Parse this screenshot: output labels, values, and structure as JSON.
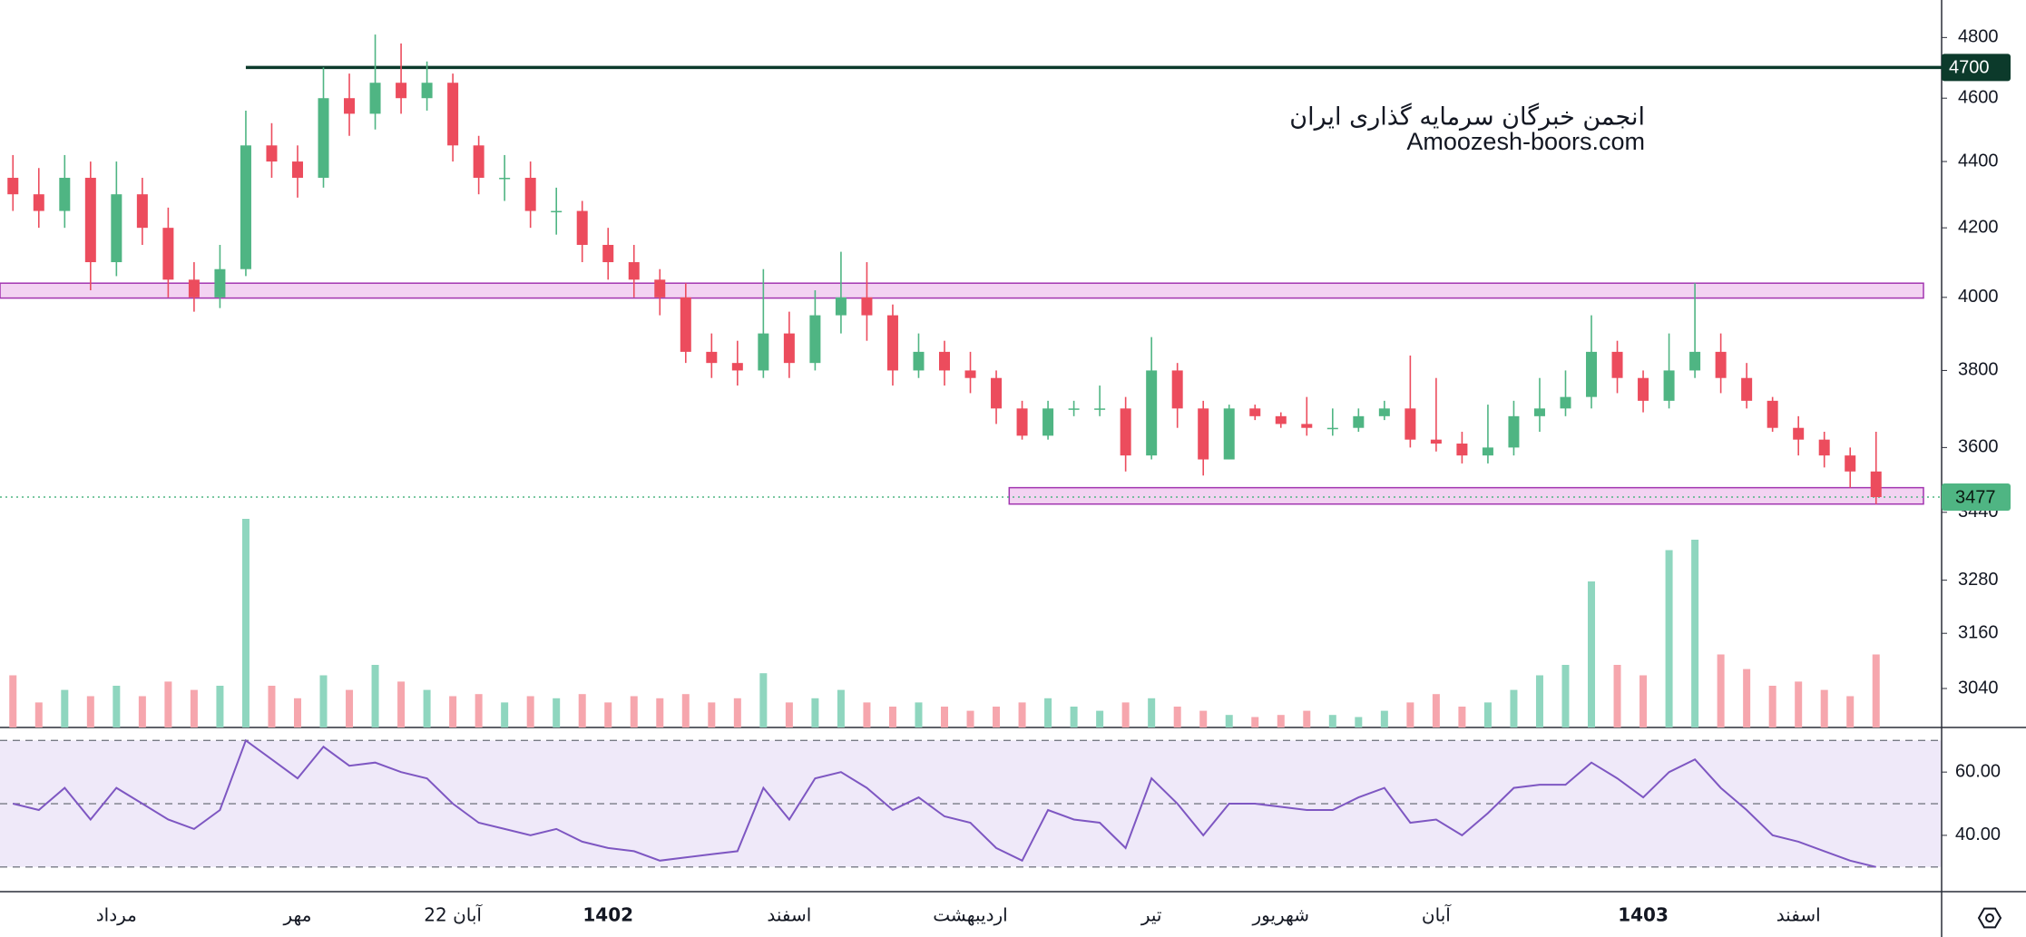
{
  "chart_data": {
    "type": "candlestick",
    "yscale": "log",
    "ylim": [
      2958,
      4928
    ],
    "yticks": [
      4800,
      4600,
      4400,
      4200,
      4000,
      3800,
      3600,
      3440,
      3280,
      3160,
      3040
    ],
    "categories": [
      null,
      null,
      null,
      null,
      "مرداد",
      null,
      null,
      null,
      null,
      null,
      null,
      "مهر",
      null,
      null,
      null,
      null,
      null,
      "22 آبان",
      null,
      null,
      null,
      null,
      null,
      "1402",
      null,
      null,
      null,
      null,
      null,
      null,
      "اسفند",
      null,
      null,
      null,
      null,
      null,
      null,
      "اردیبهشت",
      null,
      null,
      null,
      null,
      null,
      null,
      "تیر",
      null,
      null,
      null,
      null,
      "شهریور",
      null,
      null,
      null,
      null,
      null,
      "آبان",
      null,
      null,
      null,
      null,
      null,
      null,
      null,
      "1403",
      null,
      null,
      null,
      null,
      null,
      "اسفند",
      null,
      null,
      null
    ],
    "open": [
      4350,
      4300,
      4250,
      4350,
      4100,
      4300,
      4200,
      4050,
      4000,
      4080,
      4450,
      4400,
      4350,
      4600,
      4550,
      4650,
      4600,
      4650,
      4450,
      4350,
      4350,
      4250,
      4250,
      4150,
      4100,
      4050,
      4000,
      3850,
      3820,
      3800,
      3900,
      3820,
      3950,
      4000,
      3950,
      3800,
      3850,
      3800,
      3780,
      3700,
      3630,
      3700,
      3700,
      3700,
      3580,
      3800,
      3700,
      3570,
      3700,
      3680,
      3660,
      3650,
      3650,
      3680,
      3700,
      3620,
      3610,
      3580,
      3600,
      3680,
      3700,
      3730,
      3850,
      3780,
      3720,
      3800,
      3850,
      3780,
      3720,
      3650,
      3620,
      3580,
      3540
    ],
    "high": [
      4420,
      4380,
      4420,
      4400,
      4400,
      4350,
      4260,
      4100,
      4150,
      4560,
      4520,
      4450,
      4700,
      4680,
      4810,
      4780,
      4720,
      4680,
      4480,
      4420,
      4400,
      4320,
      4280,
      4200,
      4150,
      4080,
      4040,
      3900,
      3880,
      4080,
      3960,
      4020,
      4130,
      4100,
      3980,
      3900,
      3880,
      3850,
      3800,
      3720,
      3720,
      3720,
      3760,
      3730,
      3890,
      3820,
      3720,
      3710,
      3710,
      3690,
      3730,
      3700,
      3700,
      3720,
      3840,
      3780,
      3640,
      3710,
      3720,
      3780,
      3800,
      3950,
      3880,
      3800,
      3900,
      4040,
      3900,
      3820,
      3730,
      3680,
      3640,
      3600,
      3640
    ],
    "low": [
      4250,
      4200,
      4200,
      4020,
      4060,
      4150,
      4000,
      3960,
      3970,
      4060,
      4350,
      4290,
      4320,
      4480,
      4500,
      4550,
      4560,
      4400,
      4300,
      4280,
      4200,
      4180,
      4100,
      4050,
      4000,
      3950,
      3820,
      3780,
      3760,
      3780,
      3780,
      3800,
      3900,
      3880,
      3760,
      3780,
      3760,
      3740,
      3660,
      3620,
      3620,
      3680,
      3680,
      3540,
      3570,
      3650,
      3530,
      3570,
      3670,
      3650,
      3630,
      3630,
      3640,
      3670,
      3600,
      3590,
      3560,
      3560,
      3580,
      3640,
      3680,
      3700,
      3740,
      3690,
      3700,
      3780,
      3740,
      3700,
      3640,
      3580,
      3550,
      3500,
      3460
    ],
    "close": [
      4300,
      4250,
      4350,
      4100,
      4300,
      4200,
      4050,
      4000,
      4080,
      4450,
      4400,
      4350,
      4600,
      4550,
      4650,
      4600,
      4650,
      4450,
      4350,
      4350,
      4250,
      4250,
      4150,
      4100,
      4050,
      4000,
      3850,
      3820,
      3800,
      3900,
      3820,
      3950,
      4000,
      3950,
      3800,
      3850,
      3800,
      3780,
      3700,
      3630,
      3700,
      3700,
      3700,
      3580,
      3800,
      3700,
      3570,
      3700,
      3680,
      3660,
      3650,
      3650,
      3680,
      3700,
      3620,
      3610,
      3580,
      3600,
      3680,
      3700,
      3730,
      3850,
      3780,
      3720,
      3800,
      3850,
      3780,
      3720,
      3650,
      3620,
      3580,
      3540,
      3477
    ],
    "up_color": "#4fb583",
    "down_color": "#ec4c5d",
    "levels": [
      {
        "value": 4700,
        "color": "#0c3a2b"
      }
    ],
    "zones": [
      [
        3998,
        4040
      ],
      [
        3460,
        3500
      ]
    ],
    "zone_color": "#a235b0",
    "volume": {
      "values": [
        25,
        12,
        18,
        15,
        20,
        15,
        22,
        18,
        20,
        100,
        20,
        14,
        25,
        18,
        30,
        22,
        18,
        15,
        16,
        12,
        15,
        14,
        16,
        12,
        15,
        14,
        16,
        12,
        14,
        26,
        12,
        14,
        18,
        12,
        10,
        12,
        10,
        8,
        10,
        12,
        14,
        10,
        8,
        12,
        14,
        10,
        8,
        6,
        5,
        6,
        8,
        6,
        5,
        8,
        12,
        16,
        10,
        12,
        18,
        25,
        30,
        70,
        30,
        25,
        85,
        90,
        35,
        28,
        20,
        22,
        18,
        15,
        35
      ],
      "ylim": [
        0,
        100
      ],
      "up_color": "#8fd6bf",
      "down_color": "#f6a6ad"
    },
    "rsi": {
      "values": [
        50,
        48,
        55,
        45,
        55,
        50,
        45,
        42,
        48,
        70,
        64,
        58,
        68,
        62,
        63,
        60,
        58,
        50,
        44,
        42,
        40,
        42,
        38,
        36,
        35,
        32,
        33,
        34,
        35,
        55,
        45,
        58,
        60,
        55,
        48,
        52,
        46,
        44,
        36,
        32,
        48,
        45,
        44,
        36,
        58,
        50,
        40,
        50,
        50,
        49,
        48,
        48,
        52,
        55,
        44,
        45,
        40,
        47,
        55,
        56,
        56,
        63,
        58,
        52,
        60,
        64,
        55,
        48,
        40,
        38,
        35,
        32,
        30
      ],
      "ylim": [
        22.2,
        74.1
      ],
      "yticks": [
        {
          "value": 40,
          "label": "40.00"
        },
        {
          "value": 60,
          "label": "60.00"
        }
      ],
      "levels": [
        30,
        50,
        70
      ],
      "color": "#7e57c2",
      "band_color": "#efe9f9"
    },
    "watermark": [
      "انجمن خبرگان سرمایه گذاری ایران",
      "Amoozesh-boors.com"
    ]
  }
}
